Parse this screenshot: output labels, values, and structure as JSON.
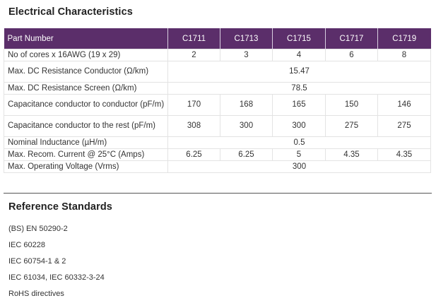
{
  "sections": {
    "electrical_title": "Electrical Characteristics",
    "reference_title": "Reference Standards"
  },
  "table": {
    "header_label": "Part Number",
    "parts": [
      "C1711",
      "C1713",
      "C1715",
      "C1717",
      "C1719"
    ],
    "rows": [
      {
        "label": "No of cores x 16AWG (19 x 29)",
        "values": [
          "2",
          "3",
          "4",
          "6",
          "8"
        ]
      },
      {
        "label": "Max. DC Resistance Conductor (Ω/km)",
        "span_value": "15.47"
      },
      {
        "label": "Max. DC Resistance Screen (Ω/km)",
        "span_value": "78.5"
      },
      {
        "label": "Capacitance conductor to conductor (pF/m)",
        "values": [
          "170",
          "168",
          "165",
          "150",
          "146"
        ]
      },
      {
        "label": "Capacitance conductor to the rest (pF/m)",
        "values": [
          "308",
          "300",
          "300",
          "275",
          "275"
        ]
      },
      {
        "label": "Nominal Inductance (µH/m)",
        "span_value": "0.5"
      },
      {
        "label": "Max. Recom. Current @ 25°C (Amps)",
        "values": [
          "6.25",
          "6.25",
          "5",
          "4.35",
          "4.35"
        ]
      },
      {
        "label": "Max. Operating Voltage (Vrms)",
        "span_value": "300"
      }
    ]
  },
  "standards": [
    "(BS) EN 50290-2",
    "IEC 60228",
    "IEC 60754-1 & 2",
    "IEC 61034, IEC 60332-3-24",
    "RoHS directives"
  ]
}
